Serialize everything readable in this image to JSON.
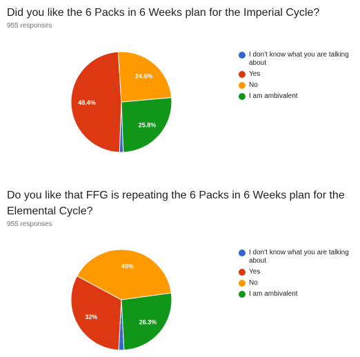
{
  "charts": [
    {
      "title": "Did you like the 6 Packs in 6 Weeks plan for the Imperial Cycle?",
      "subtitle": "955 responses"
    },
    {
      "title": "Do you like that FFG is repeating the 6 Packs in 6 Weeks plan for the Elemental Cycle?",
      "subtitle": "955 responses"
    }
  ],
  "chart_data": [
    {
      "type": "pie",
      "title": "Did you like the 6 Packs in 6 Weeks plan for the Imperial Cycle?",
      "total_responses": 955,
      "legend_position": "right",
      "slices": [
        {
          "label": "I don't know what you are talking about",
          "value": 1.2,
          "color": "#3366cc",
          "data_label": ""
        },
        {
          "label": "Yes",
          "value": 48.4,
          "color": "#dc3912",
          "data_label": "48.4%"
        },
        {
          "label": "No",
          "value": 24.6,
          "color": "#ff9900",
          "data_label": "24.6%"
        },
        {
          "label": "I am ambivalent",
          "value": 25.8,
          "color": "#109618",
          "data_label": "25.8%"
        }
      ]
    },
    {
      "type": "pie",
      "title": "Do you like that FFG is repeating the 6 Packs in 6 Weeks plan for the Elemental Cycle?",
      "total_responses": 955,
      "legend_position": "right",
      "slices": [
        {
          "label": "I don't know what you are talking about",
          "value": 1.7,
          "color": "#3366cc",
          "data_label": ""
        },
        {
          "label": "Yes",
          "value": 32,
          "color": "#dc3912",
          "data_label": "32%"
        },
        {
          "label": "No",
          "value": 40,
          "color": "#ff9900",
          "data_label": "40%"
        },
        {
          "label": "I am ambivalent",
          "value": 26.3,
          "color": "#109618",
          "data_label": "26.3%"
        }
      ]
    }
  ]
}
